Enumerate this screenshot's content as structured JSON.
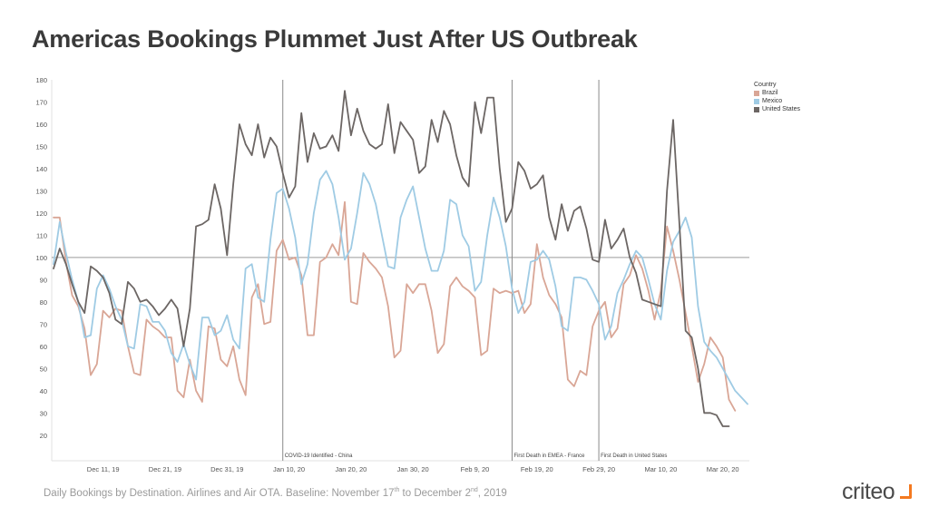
{
  "title": "Americas Bookings Plummet Just After US Outbreak",
  "caption": {
    "before_1": "Daily Bookings by Destination. Airlines and Air OTA. Baseline: November 17",
    "sup_1": "th",
    "between": " to December 2",
    "sup_2": "nd",
    "after": ", 2019"
  },
  "logo": {
    "text": "criteo"
  },
  "legend": {
    "title": "Country",
    "items": [
      {
        "label": "Brazil",
        "color": "#d9a696"
      },
      {
        "label": "Mexico",
        "color": "#9fcbe4"
      },
      {
        "label": "United States",
        "color": "#6c6664"
      }
    ]
  },
  "chart_data": {
    "type": "line",
    "ylim": [
      15,
      180
    ],
    "yticks": [
      20,
      30,
      40,
      50,
      60,
      70,
      80,
      90,
      100,
      110,
      120,
      130,
      140,
      150,
      160,
      170,
      180
    ],
    "x_start": "2019-12-03",
    "xtick_labels": [
      {
        "label": "Dec 11, 19",
        "date": "2019-12-11"
      },
      {
        "label": "Dec 21, 19",
        "date": "2019-12-21"
      },
      {
        "label": "Dec 31, 19",
        "date": "2019-12-31"
      },
      {
        "label": "Jan 10, 20",
        "date": "2020-01-10"
      },
      {
        "label": "Jan 20, 20",
        "date": "2020-01-20"
      },
      {
        "label": "Jan 30, 20",
        "date": "2020-01-30"
      },
      {
        "label": "Feb 9, 20",
        "date": "2020-02-09"
      },
      {
        "label": "Feb 19, 20",
        "date": "2020-02-19"
      },
      {
        "label": "Feb 29, 20",
        "date": "2020-02-29"
      },
      {
        "label": "Mar 10, 20",
        "date": "2020-03-10"
      },
      {
        "label": "Mar 20, 20",
        "date": "2020-03-20"
      }
    ],
    "reference_line": 100,
    "annotations": [
      {
        "label": "COVID-19 Identified - China",
        "date": "2020-01-09"
      },
      {
        "label": "First Death in EMEA - France",
        "date": "2020-02-15"
      },
      {
        "label": "First Death in United States",
        "date": "2020-02-29"
      }
    ],
    "series": [
      {
        "name": "United States",
        "color": "#6c6664",
        "values": [
          95,
          104,
          97,
          88,
          80,
          75,
          96,
          94,
          91,
          84,
          72,
          70,
          89,
          86,
          80,
          81,
          78,
          74,
          77,
          81,
          77,
          60,
          77,
          114,
          115,
          117,
          133,
          122,
          101,
          133,
          160,
          151,
          146,
          160,
          145,
          154,
          150,
          138,
          127,
          132,
          165,
          143,
          156,
          149,
          150,
          155,
          148,
          175,
          155,
          167,
          157,
          151,
          149,
          151,
          169,
          147,
          161,
          157,
          153,
          138,
          141,
          162,
          152,
          166,
          160,
          146,
          136,
          132,
          170,
          156,
          172,
          172,
          140,
          116,
          122,
          143,
          139,
          131,
          133,
          137,
          118,
          108,
          124,
          112,
          121,
          123,
          113,
          99,
          98,
          117,
          104,
          108,
          113,
          100,
          93,
          81,
          80,
          79,
          78,
          130,
          162,
          115,
          67,
          64,
          50,
          30,
          30,
          29,
          24,
          24
        ]
      },
      {
        "name": "Mexico",
        "color": "#9fcbe4",
        "values": [
          97,
          116,
          102,
          90,
          80,
          64,
          65,
          86,
          92,
          86,
          78,
          72,
          60,
          59,
          79,
          78,
          71,
          71,
          67,
          57,
          53,
          61,
          52,
          45,
          73,
          73,
          65,
          67,
          74,
          63,
          59,
          95,
          97,
          82,
          80,
          108,
          129,
          131,
          122,
          109,
          88,
          97,
          120,
          135,
          139,
          133,
          118,
          99,
          104,
          120,
          138,
          133,
          124,
          110,
          96,
          95,
          118,
          126,
          132,
          118,
          104,
          94,
          94,
          103,
          126,
          124,
          110,
          105,
          85,
          89,
          110,
          127,
          118,
          105,
          86,
          75,
          80,
          98,
          99,
          103,
          99,
          87,
          69,
          67,
          91,
          91,
          90,
          85,
          79,
          63,
          69,
          84,
          90,
          97,
          103,
          100,
          90,
          79,
          72,
          94,
          107,
          112,
          118,
          109,
          78,
          62,
          58,
          55,
          50,
          45,
          40,
          37,
          34
        ]
      },
      {
        "name": "Brazil",
        "color": "#d9a696",
        "values": [
          118,
          118,
          98,
          83,
          78,
          68,
          47,
          52,
          76,
          73,
          77,
          76,
          60,
          48,
          47,
          72,
          69,
          67,
          64,
          64,
          40,
          37,
          54,
          40,
          35,
          69,
          68,
          54,
          51,
          60,
          45,
          38,
          82,
          88,
          70,
          71,
          103,
          108,
          99,
          100,
          92,
          65,
          65,
          98,
          100,
          106,
          101,
          125,
          80,
          79,
          102,
          98,
          95,
          91,
          78,
          55,
          58,
          88,
          84,
          88,
          88,
          76,
          57,
          61,
          87,
          91,
          87,
          85,
          82,
          56,
          58,
          86,
          84,
          85,
          84,
          85,
          75,
          79,
          106,
          91,
          83,
          79,
          73,
          45,
          42,
          49,
          47,
          69,
          76,
          80,
          64,
          68,
          88,
          92,
          101,
          95,
          85,
          72,
          85,
          114,
          103,
          90,
          75,
          60,
          44,
          52,
          64,
          60,
          55,
          36,
          31
        ]
      }
    ]
  }
}
